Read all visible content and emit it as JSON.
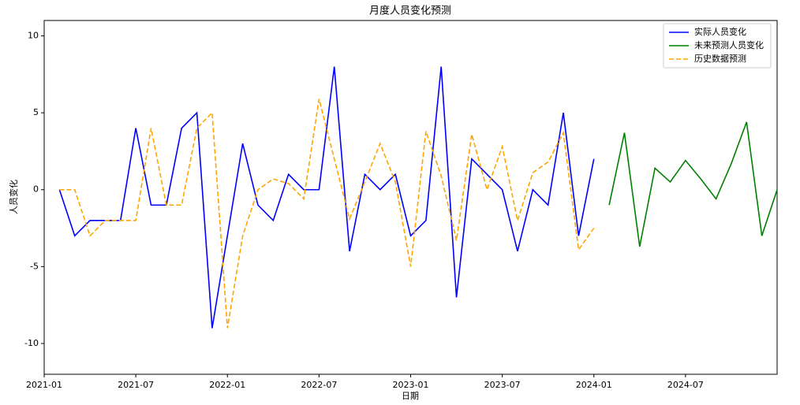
{
  "chart_data": {
    "type": "line",
    "title": "月度人员变化预测",
    "x_label": "日期",
    "y_label": "人员变化",
    "x": [
      "2021-01",
      "2021-02",
      "2021-03",
      "2021-04",
      "2021-05",
      "2021-06",
      "2021-07",
      "2021-08",
      "2021-09",
      "2021-10",
      "2021-11",
      "2021-12",
      "2022-01",
      "2022-02",
      "2022-03",
      "2022-04",
      "2022-05",
      "2022-06",
      "2022-07",
      "2022-08",
      "2022-09",
      "2022-10",
      "2022-11",
      "2022-12",
      "2023-01",
      "2023-02",
      "2023-03",
      "2023-04",
      "2023-05",
      "2023-06",
      "2023-07",
      "2023-08",
      "2023-09",
      "2023-10",
      "2023-11",
      "2023-12",
      "2024-01",
      "2024-02",
      "2024-03",
      "2024-04",
      "2024-05",
      "2024-06",
      "2024-07",
      "2024-08",
      "2024-09",
      "2024-10",
      "2024-11",
      "2024-12"
    ],
    "series": [
      {
        "name": "实际人员变化",
        "color": "#0000ff",
        "dashed": false,
        "values": [
          0,
          -3,
          -2,
          -2,
          -2,
          4,
          -1,
          -1,
          4,
          5,
          -9,
          -3,
          3,
          -1,
          -2,
          1,
          0,
          0,
          8,
          -4,
          1,
          0,
          1,
          -3,
          -2,
          8,
          -7,
          2,
          1,
          0,
          -4,
          0,
          -1,
          5,
          -3,
          2,
          null,
          null,
          null,
          null,
          null,
          null,
          null,
          null,
          null,
          null,
          null,
          null
        ]
      },
      {
        "name": "未来预测人员变化",
        "color": "#008000",
        "dashed": false,
        "values": [
          null,
          null,
          null,
          null,
          null,
          null,
          null,
          null,
          null,
          null,
          null,
          null,
          null,
          null,
          null,
          null,
          null,
          null,
          null,
          null,
          null,
          null,
          null,
          null,
          null,
          null,
          null,
          null,
          null,
          null,
          null,
          null,
          null,
          null,
          null,
          null,
          -1,
          3.7,
          -3.7,
          1.4,
          0.5,
          1.9,
          0.7,
          -0.6,
          1.7,
          4.4,
          -3,
          0
        ]
      },
      {
        "name": "历史数据预测",
        "color": "#ffa500",
        "dashed": true,
        "values": [
          0,
          0,
          -3,
          -2,
          -2,
          -2,
          4,
          -1,
          -1,
          4,
          5,
          -9,
          -3,
          0,
          0.7,
          0.4,
          -0.6,
          5.9,
          2,
          -1.9,
          0.5,
          3,
          0.5,
          -5,
          3.8,
          0.9,
          -3.3,
          3.6,
          0,
          2.8,
          -2,
          1.1,
          1.8,
          3.7,
          -3.9,
          -2.5,
          null,
          null,
          null,
          null,
          null,
          null,
          null,
          null,
          null,
          null,
          null,
          null
        ]
      }
    ],
    "xlim": [
      "2021-01",
      "2024-12"
    ],
    "xticks": [
      "2021-01",
      "2021-07",
      "2022-01",
      "2022-07",
      "2023-01",
      "2023-07",
      "2024-01",
      "2024-07"
    ],
    "ylim": [
      -12,
      11
    ],
    "yticks": [
      -10,
      -5,
      0,
      5,
      10
    ],
    "grid": false,
    "legend": "upper right"
  }
}
